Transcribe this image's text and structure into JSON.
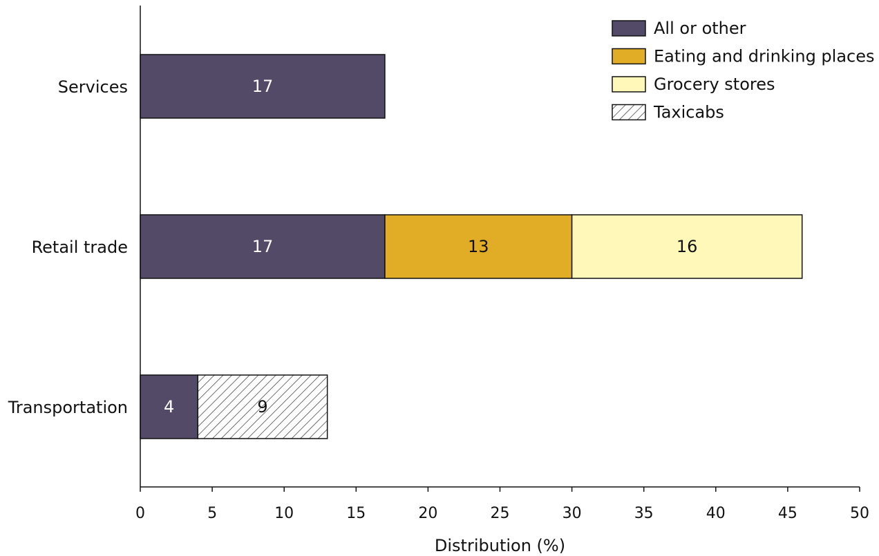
{
  "chart_data": {
    "type": "bar",
    "orientation": "horizontal",
    "stacked": true,
    "title": "",
    "xlabel": "Distribution (%)",
    "ylabel": "",
    "xlim": [
      0,
      50
    ],
    "xticks": [
      0,
      5,
      10,
      15,
      20,
      25,
      30,
      35,
      40,
      45,
      50
    ],
    "grid": false,
    "legend_position": "top-right",
    "categories": [
      "Services",
      "Retail trade",
      "Transportation"
    ],
    "series": [
      {
        "name": "All or other",
        "color": "#534a68",
        "pattern": "solid",
        "values": [
          17,
          17,
          4
        ]
      },
      {
        "name": "Eating and drinking places",
        "color": "#e1ac26",
        "pattern": "solid",
        "values": [
          null,
          13,
          null
        ]
      },
      {
        "name": "Grocery stores",
        "color": "#fff8b8",
        "pattern": "solid",
        "values": [
          null,
          16,
          null
        ]
      },
      {
        "name": "Taxicabs",
        "color": "#ffffff",
        "pattern": "hatch",
        "values": [
          null,
          null,
          9
        ]
      }
    ],
    "data_labels": [
      [
        "17",
        null,
        null,
        null
      ],
      [
        "17",
        "13",
        "16",
        null
      ],
      [
        "4",
        null,
        null,
        "9"
      ]
    ]
  }
}
